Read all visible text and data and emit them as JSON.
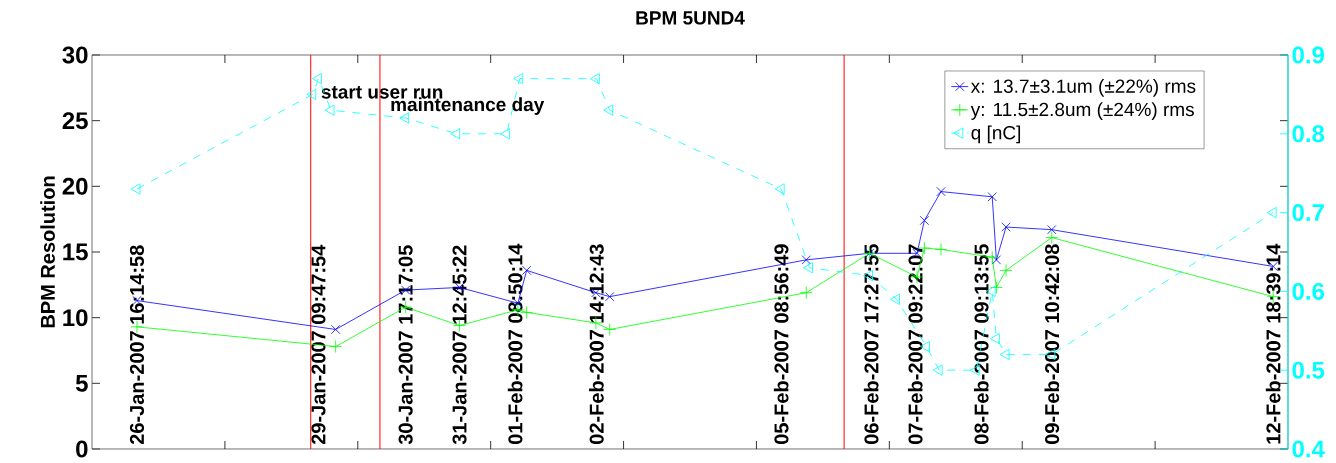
{
  "chart_data": {
    "type": "line",
    "title": "BPM 5UND4",
    "ylabel": "BPM Resolution",
    "xlim": [
      "2007-01-26",
      "2007-02-13"
    ],
    "xticks": [
      {
        "value": "2007-01-26T16:14",
        "label": "26-Jan-2007 16:14:58"
      },
      {
        "value": "2007-01-29T09:47",
        "label": "29-Jan-2007 09:47:54"
      },
      {
        "value": "2007-01-30T17:17",
        "label": "30-Jan-2007 17:17:05"
      },
      {
        "value": "2007-01-31T12:45",
        "label": "31-Jan-2007 12:45:22"
      },
      {
        "value": "2007-02-01T08:50",
        "label": "01-Feb-2007 08:50:14"
      },
      {
        "value": "2007-02-02T14:12",
        "label": "02-Feb-2007 14:12:43"
      },
      {
        "value": "2007-02-05T08:56",
        "label": "05-Feb-2007 08:56:49"
      },
      {
        "value": "2007-02-06T17:27",
        "label": "06-Feb-2007 17:27:55"
      },
      {
        "value": "2007-02-07T09:22",
        "label": "07-Feb-2007 09:22:07"
      },
      {
        "value": "2007-02-08T09:13",
        "label": "08-Feb-2007 09:13:55"
      },
      {
        "value": "2007-02-09T10:42",
        "label": "09-Feb-2007 10:42:08"
      },
      {
        "value": "2007-02-12T18:39",
        "label": "12-Feb-2007 18:39:14"
      },
      {
        "value": "2007-01-28",
        "label": null
      },
      {
        "value": "2007-01-30",
        "label": null
      },
      {
        "value": "2007-02-01",
        "label": null
      },
      {
        "value": "2007-02-03",
        "label": null
      },
      {
        "value": "2007-02-05",
        "label": null
      },
      {
        "value": "2007-02-07",
        "label": null
      },
      {
        "value": "2007-02-09",
        "label": null
      },
      {
        "value": "2007-02-11",
        "label": null
      }
    ],
    "ylim": [
      0,
      30
    ],
    "yticks": [
      0,
      5,
      10,
      15,
      20,
      25,
      30
    ],
    "y2lim": [
      0.4,
      0.9
    ],
    "y2ticks": [
      0.4,
      0.5,
      0.6,
      0.7,
      0.8,
      0.9
    ],
    "x": [
      "2007-01-26T16:14",
      "2007-01-29T16:00",
      "2007-01-30T17:17",
      "2007-01-31T12:45",
      "2007-02-01T09:50",
      "2007-02-01T13:00",
      "2007-02-02T14:00",
      "2007-02-02T19:00",
      "2007-02-05T18:00",
      "2007-02-06T16:50",
      "2007-02-07T10:00",
      "2007-02-07T12:40",
      "2007-02-07T18:40",
      "2007-02-08T13:10",
      "2007-02-08T14:40",
      "2007-02-08T18:10",
      "2007-02-09T10:40",
      "2007-02-12T18:39"
    ],
    "series": [
      {
        "name": "x: 13.7±3.1um (±22%) rms",
        "color": "#0000ff",
        "marker": "cross",
        "line_style": "solid",
        "values": [
          11.3,
          9.1,
          12.1,
          12.3,
          11.1,
          13.6,
          11.9,
          11.6,
          14.4,
          14.9,
          14.9,
          17.4,
          19.6,
          19.2,
          14.4,
          16.9,
          16.7,
          13.9
        ]
      },
      {
        "name": "y: 11.5±2.8um (±24%) rms",
        "color": "#00ff00",
        "marker": "plus",
        "line_style": "solid",
        "values": [
          9.3,
          7.8,
          10.8,
          9.4,
          10.6,
          10.4,
          9.6,
          9.1,
          11.9,
          14.9,
          13.1,
          15.3,
          15.2,
          14.6,
          12.3,
          13.6,
          16.1,
          11.6
        ]
      },
      {
        "name": "q [nC]",
        "color": "#00ffff",
        "marker": "triangle",
        "line_style": "dashed",
        "axis": "y2",
        "x": [
          "2007-01-26T16:14",
          "2007-01-29T07:45",
          "2007-01-29T09:47",
          "2007-01-29T14:20",
          "2007-01-30T17:17",
          "2007-01-31T11:45",
          "2007-02-01T05:45",
          "2007-02-01T10:30",
          "2007-02-02T14:10",
          "2007-02-02T19:00",
          "2007-02-05T08:56",
          "2007-02-05T19:10",
          "2007-02-06T16:50",
          "2007-02-07T02:35",
          "2007-02-07T13:25",
          "2007-02-07T18:00",
          "2007-02-08T07:25",
          "2007-02-08T13:10",
          "2007-02-08T14:40",
          "2007-02-08T18:10",
          "2007-02-09T10:42",
          "2007-02-12T18:39"
        ],
        "values": [
          0.73,
          0.85,
          0.87,
          0.83,
          0.82,
          0.8,
          0.8,
          0.87,
          0.87,
          0.83,
          0.73,
          0.63,
          0.62,
          0.59,
          0.53,
          0.5,
          0.5,
          0.6,
          0.54,
          0.52,
          0.52,
          0.7
        ]
      }
    ],
    "ref_lines": [
      {
        "axis": "x",
        "value": "2007-01-29T07:00",
        "label": "start user run",
        "color": "#ff0000"
      },
      {
        "axis": "x",
        "value": "2007-01-30T08:00",
        "label": "maintenance day",
        "color": "#ff0000"
      },
      {
        "axis": "x",
        "value": "2007-02-06T07:40",
        "color": "#ff0000"
      }
    ],
    "legend": "top right",
    "grid": false
  }
}
